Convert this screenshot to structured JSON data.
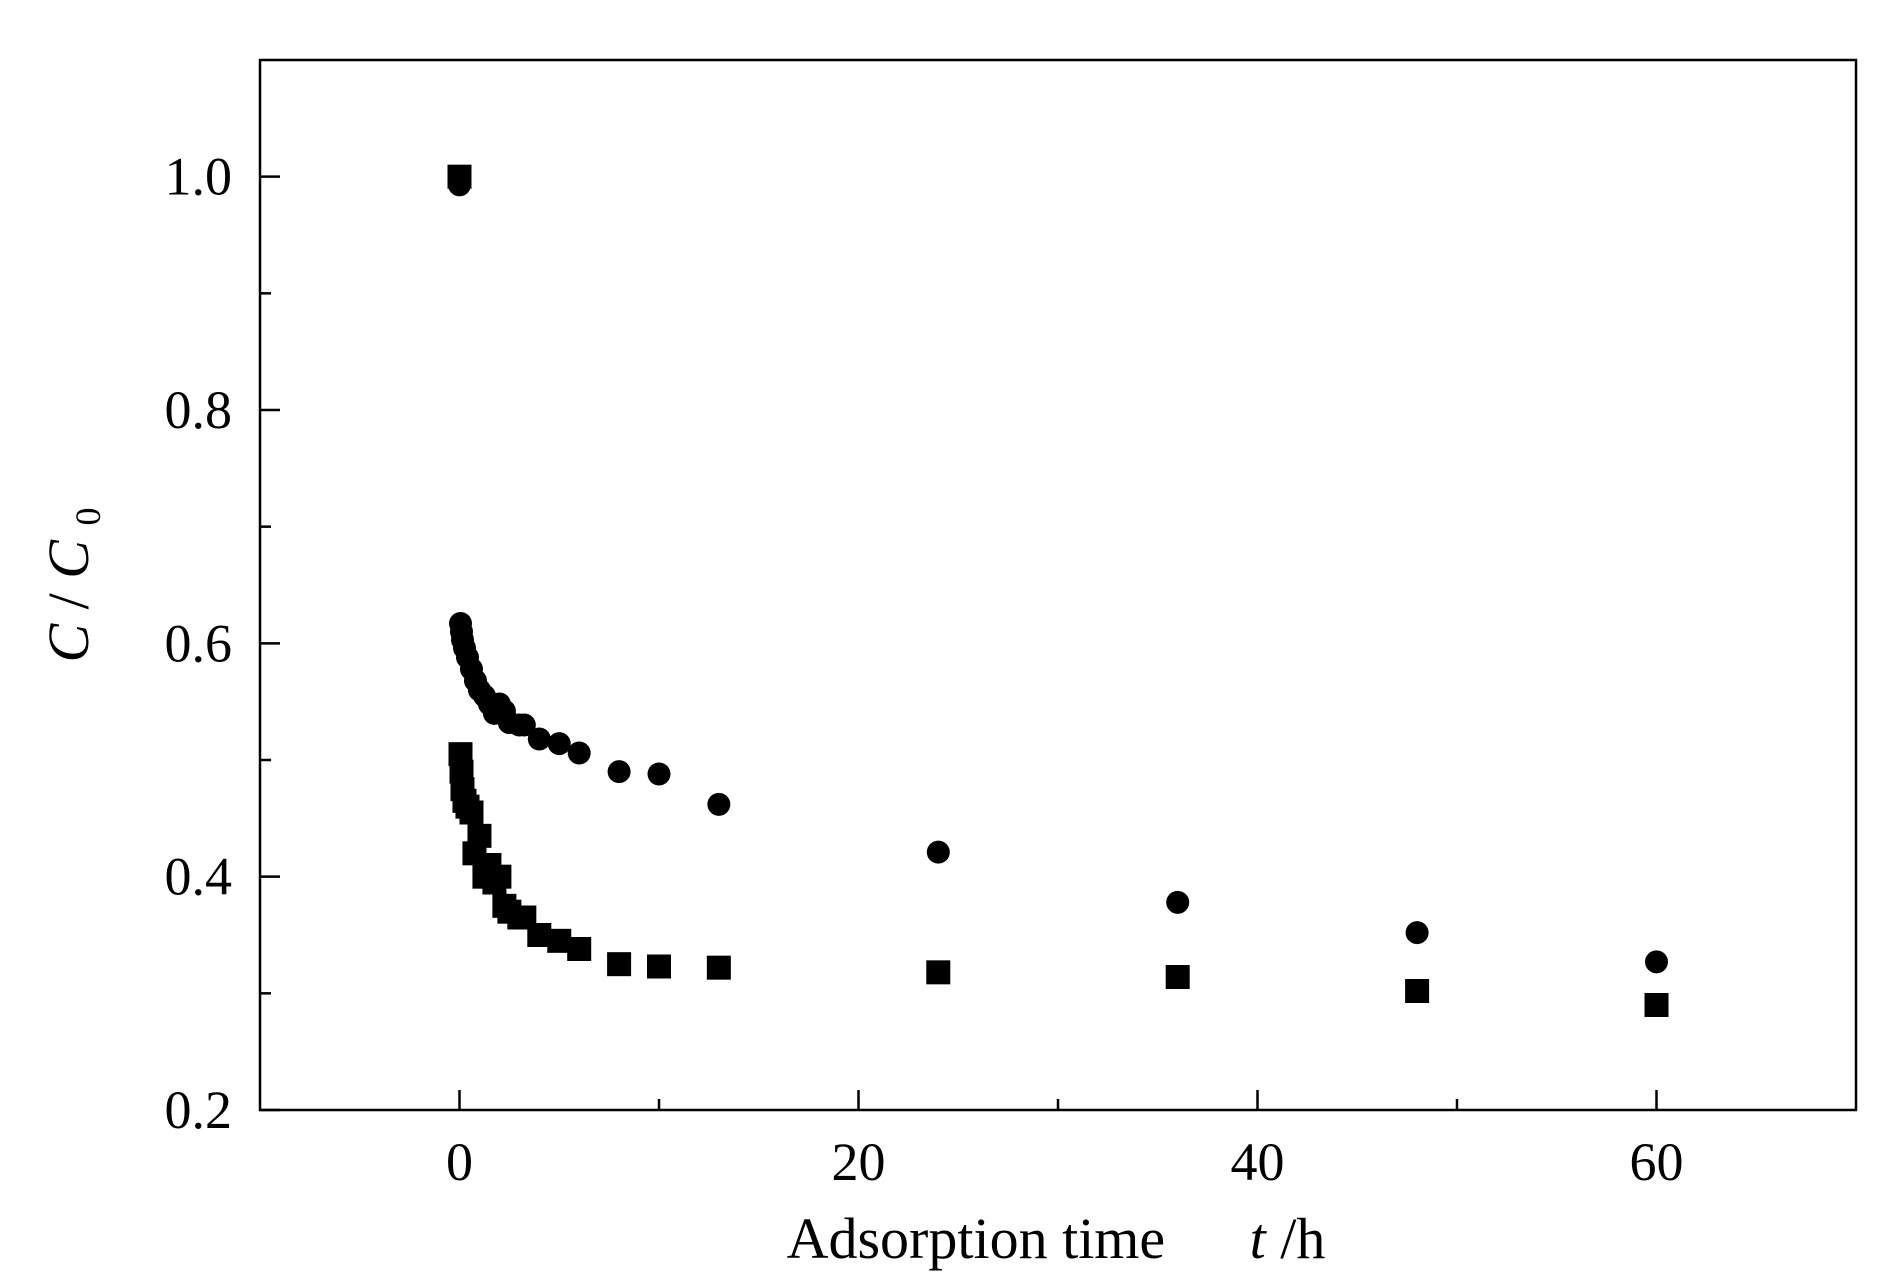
{
  "chart_data": {
    "type": "scatter",
    "xlabel": "Adsorption time",
    "xlabel_var": "t",
    "xlabel_unit": " /h",
    "ylabel_var": "C",
    "ylabel_sep": "/",
    "ylabel_var2": "C",
    "ylabel_sub": "0",
    "xlim": [
      -10,
      70
    ],
    "ylim": [
      0.2,
      1.1
    ],
    "x_major_ticks": [
      0,
      20,
      40,
      60
    ],
    "x_minor_ticks": [
      10,
      30,
      50
    ],
    "x_tick_labels": [
      "0",
      "20",
      "40",
      "60"
    ],
    "y_major_ticks": [
      0.2,
      0.4,
      0.6,
      0.8,
      1.0
    ],
    "y_minor_ticks": [
      0.3,
      0.5,
      0.7,
      0.9
    ],
    "y_tick_labels": [
      "0.2",
      "0.4",
      "0.6",
      "0.8",
      "1.0"
    ],
    "grid": false,
    "series": [
      {
        "marker": "square",
        "color": "#000000",
        "points": [
          [
            0,
            1.0
          ],
          [
            0.05,
            0.505
          ],
          [
            0.1,
            0.49
          ],
          [
            0.15,
            0.475
          ],
          [
            0.25,
            0.465
          ],
          [
            0.4,
            0.46
          ],
          [
            0.6,
            0.455
          ],
          [
            0.75,
            0.42
          ],
          [
            1.0,
            0.435
          ],
          [
            1.25,
            0.4
          ],
          [
            1.5,
            0.41
          ],
          [
            1.75,
            0.395
          ],
          [
            2.0,
            0.4
          ],
          [
            2.25,
            0.375
          ],
          [
            2.5,
            0.37
          ],
          [
            3.0,
            0.365
          ],
          [
            3.25,
            0.365
          ],
          [
            4.0,
            0.35
          ],
          [
            5.0,
            0.345
          ],
          [
            6.0,
            0.338
          ],
          [
            8.0,
            0.325
          ],
          [
            10.0,
            0.323
          ],
          [
            13.0,
            0.322
          ],
          [
            24.0,
            0.318
          ],
          [
            36.0,
            0.314
          ],
          [
            48.0,
            0.302
          ],
          [
            60.0,
            0.29
          ]
        ]
      },
      {
        "marker": "circle",
        "color": "#000000",
        "points": [
          [
            0,
            0.993
          ],
          [
            0.05,
            0.617
          ],
          [
            0.1,
            0.61
          ],
          [
            0.15,
            0.603
          ],
          [
            0.25,
            0.596
          ],
          [
            0.4,
            0.588
          ],
          [
            0.6,
            0.578
          ],
          [
            0.8,
            0.568
          ],
          [
            1.0,
            0.56
          ],
          [
            1.25,
            0.555
          ],
          [
            1.5,
            0.548
          ],
          [
            1.75,
            0.54
          ],
          [
            2.0,
            0.548
          ],
          [
            2.25,
            0.542
          ],
          [
            2.5,
            0.532
          ],
          [
            3.0,
            0.53
          ],
          [
            3.25,
            0.53
          ],
          [
            4.0,
            0.518
          ],
          [
            5.0,
            0.514
          ],
          [
            6.0,
            0.506
          ],
          [
            8.0,
            0.49
          ],
          [
            10.0,
            0.488
          ],
          [
            13.0,
            0.462
          ],
          [
            24.0,
            0.421
          ],
          [
            36.0,
            0.378
          ],
          [
            48.0,
            0.352
          ],
          [
            60.0,
            0.327
          ]
        ]
      }
    ]
  }
}
